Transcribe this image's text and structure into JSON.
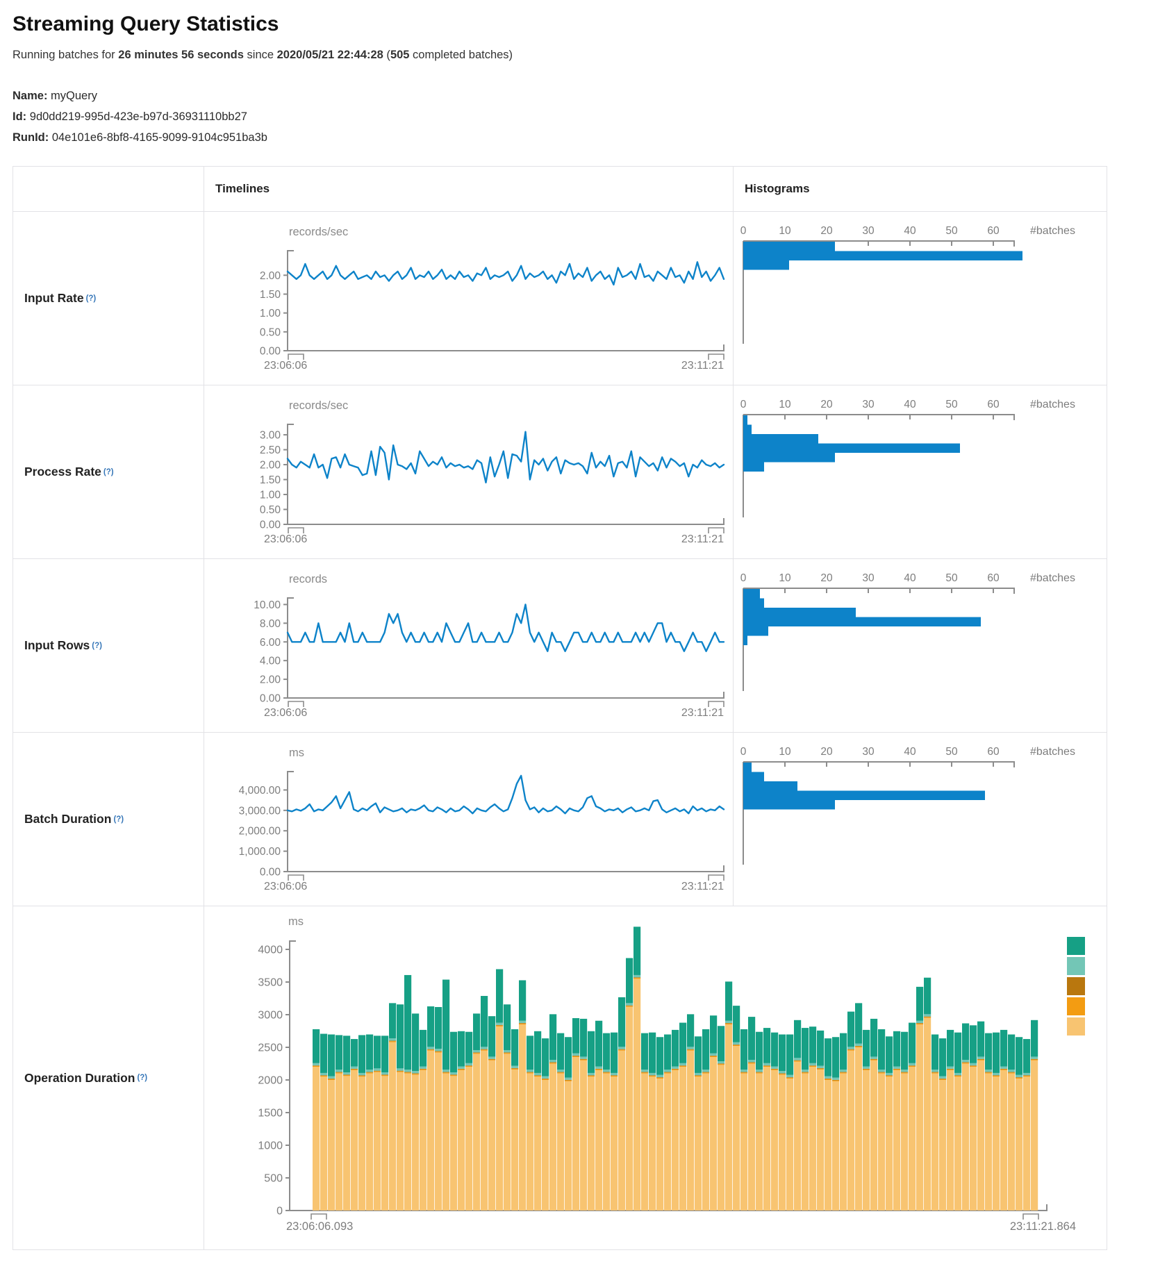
{
  "page": {
    "title": "Streaming Query Statistics",
    "sub_prefix": "Running batches for ",
    "sub_duration": "26 minutes 56 seconds",
    "sub_since": " since ",
    "sub_start": "2020/05/21 22:44:28",
    "sub_paren": " (",
    "sub_batches": "505",
    "sub_suffix": " completed batches)",
    "name_label": "Name:",
    "name_value": "myQuery",
    "id_label": "Id:",
    "id_value": "9d0dd219-995d-423e-b97d-36931110bb27",
    "runid_label": "RunId:",
    "runid_value": "04e101e6-8bf8-4165-9099-9104c951ba3b"
  },
  "table": {
    "col_timelines": "Timelines",
    "col_histograms": "Histograms",
    "help": "(?)",
    "rows": [
      {
        "label": "Input Rate"
      },
      {
        "label": "Process Rate"
      },
      {
        "label": "Input Rows"
      },
      {
        "label": "Batch Duration"
      },
      {
        "label": "Operation Duration"
      }
    ]
  },
  "colors": {
    "accent_blue": "#0d83c9",
    "axis_gray": "#8c8c8c",
    "tick_text": "#7d7d7d",
    "legend": [
      "#16A085",
      "#73C6B6",
      "#B9770E",
      "#F39C12",
      "#F8C471"
    ]
  },
  "chart_data": [
    {
      "id": "input-rate-timeline",
      "type": "line",
      "unit": "records/sec",
      "x_start": "23:06:06",
      "x_end": "23:11:21",
      "ymax": 2.65,
      "yticks": [
        {
          "label": "2.00",
          "value": 2.0
        },
        {
          "label": "1.50",
          "value": 1.5
        },
        {
          "label": "1.00",
          "value": 1.0
        },
        {
          "label": "0.50",
          "value": 0.5
        },
        {
          "label": "0.00",
          "value": 0.0
        }
      ],
      "values": [
        2.1,
        2.0,
        1.9,
        2.0,
        2.3,
        2.0,
        1.9,
        2.0,
        2.1,
        1.9,
        2.0,
        2.25,
        2.0,
        1.9,
        2.0,
        2.1,
        1.9,
        1.95,
        2.0,
        1.9,
        2.1,
        1.95,
        2.0,
        1.85,
        2.0,
        2.1,
        1.9,
        2.0,
        2.2,
        1.9,
        2.0,
        1.95,
        2.1,
        1.9,
        2.0,
        2.15,
        1.9,
        2.0,
        1.9,
        2.1,
        1.95,
        2.0,
        1.85,
        2.05,
        2.0,
        2.2,
        1.9,
        2.0,
        1.95,
        2.0,
        2.1,
        1.85,
        2.0,
        2.25,
        1.9,
        2.05,
        1.95,
        2.0,
        2.1,
        1.9,
        2.0,
        1.8,
        2.1,
        2.0,
        2.3,
        1.9,
        2.05,
        1.95,
        2.2,
        1.85,
        2.0,
        2.1,
        1.9,
        2.0,
        1.75,
        2.2,
        1.95,
        2.0,
        2.1,
        1.9,
        2.3,
        1.95,
        2.0,
        1.85,
        2.1,
        2.0,
        1.9,
        2.2,
        1.95,
        2.0,
        1.8,
        2.1,
        1.9,
        2.35,
        1.95,
        2.1,
        1.85,
        2.0,
        2.2,
        1.9
      ]
    },
    {
      "id": "input-rate-histogram",
      "type": "bar",
      "orientation": "horizontal",
      "xlabel": "#batches",
      "xticks": [
        0,
        10,
        20,
        30,
        40,
        50,
        60
      ],
      "values": [
        22,
        67,
        11
      ]
    },
    {
      "id": "process-rate-timeline",
      "type": "line",
      "unit": "records/sec",
      "x_start": "23:06:06",
      "x_end": "23:11:21",
      "ymax": 3.35,
      "yticks": [
        {
          "label": "3.00",
          "value": 3.0
        },
        {
          "label": "2.50",
          "value": 2.5
        },
        {
          "label": "2.00",
          "value": 2.0
        },
        {
          "label": "1.50",
          "value": 1.5
        },
        {
          "label": "1.00",
          "value": 1.0
        },
        {
          "label": "0.50",
          "value": 0.5
        },
        {
          "label": "0.00",
          "value": 0.0
        }
      ],
      "values": [
        2.2,
        2.0,
        1.9,
        2.1,
        2.0,
        1.9,
        2.35,
        1.9,
        2.0,
        1.55,
        2.2,
        2.25,
        1.9,
        2.35,
        2.0,
        1.95,
        1.9,
        1.65,
        1.7,
        2.45,
        1.65,
        2.6,
        2.4,
        1.5,
        2.65,
        2.0,
        1.95,
        1.85,
        2.05,
        1.7,
        2.45,
        2.2,
        1.95,
        2.1,
        2.0,
        2.25,
        1.9,
        2.05,
        1.95,
        2.0,
        1.9,
        1.95,
        1.85,
        2.15,
        2.05,
        1.4,
        2.25,
        1.6,
        2.0,
        2.45,
        1.55,
        2.35,
        2.3,
        2.1,
        3.1,
        1.5,
        2.15,
        2.0,
        2.2,
        1.8,
        2.1,
        2.25,
        1.7,
        2.15,
        2.05,
        2.0,
        2.05,
        1.95,
        1.7,
        2.4,
        1.9,
        2.1,
        1.95,
        2.3,
        1.6,
        2.05,
        2.1,
        1.9,
        2.45,
        1.6,
        2.25,
        2.1,
        1.95,
        2.05,
        1.8,
        2.25,
        1.9,
        2.2,
        2.1,
        1.95,
        2.05,
        1.6,
        2.0,
        1.9,
        2.15,
        2.0,
        1.95,
        2.05,
        1.9,
        2.0
      ]
    },
    {
      "id": "process-rate-histogram",
      "type": "bar",
      "orientation": "horizontal",
      "xlabel": "#batches",
      "xticks": [
        0,
        10,
        20,
        30,
        40,
        50,
        60
      ],
      "values": [
        1,
        2,
        18,
        52,
        22,
        5
      ]
    },
    {
      "id": "input-rows-timeline",
      "type": "line",
      "unit": "records",
      "x_start": "23:06:06",
      "x_end": "23:11:21",
      "ymax": 10.7,
      "yticks": [
        {
          "label": "10.00",
          "value": 10.0
        },
        {
          "label": "8.00",
          "value": 8.0
        },
        {
          "label": "6.00",
          "value": 6.0
        },
        {
          "label": "4.00",
          "value": 4.0
        },
        {
          "label": "2.00",
          "value": 2.0
        },
        {
          "label": "0.00",
          "value": 0.0
        }
      ],
      "values": [
        7,
        6,
        6,
        6,
        7,
        6,
        6,
        8,
        6,
        6,
        6,
        6,
        7,
        6,
        8,
        6,
        6,
        7,
        6,
        6,
        6,
        6,
        7,
        9,
        8,
        9,
        7,
        6,
        7,
        6,
        6,
        7,
        6,
        6,
        7,
        6,
        8,
        7,
        6,
        6,
        7,
        8,
        6,
        6,
        7,
        6,
        6,
        6,
        7,
        6,
        6,
        7,
        9,
        8,
        10,
        7,
        6,
        7,
        6,
        5,
        7,
        6,
        6,
        5,
        6,
        7,
        7,
        6,
        6,
        7,
        6,
        6,
        7,
        6,
        6,
        7,
        6,
        6,
        6,
        7,
        6,
        7,
        6,
        7,
        8,
        8,
        6,
        7,
        6,
        6,
        5,
        6,
        7,
        6,
        6,
        5,
        6,
        7,
        6,
        6
      ]
    },
    {
      "id": "input-rows-histogram",
      "type": "bar",
      "orientation": "horizontal",
      "xlabel": "#batches",
      "xticks": [
        0,
        10,
        20,
        30,
        40,
        50,
        60
      ],
      "values": [
        4,
        5,
        27,
        57,
        6,
        1
      ]
    },
    {
      "id": "batch-duration-timeline",
      "type": "line",
      "unit": "ms",
      "x_start": "23:06:06",
      "x_end": "23:11:21",
      "ymax": 4900,
      "yticks": [
        {
          "label": "4,000.00",
          "value": 4000
        },
        {
          "label": "3,000.00",
          "value": 3000
        },
        {
          "label": "2,000.00",
          "value": 2000
        },
        {
          "label": "1,000.00",
          "value": 1000
        },
        {
          "label": "0.00",
          "value": 0
        }
      ],
      "values": [
        3000,
        2950,
        3050,
        2980,
        3100,
        3300,
        2950,
        3050,
        3000,
        3200,
        3400,
        3700,
        3100,
        3500,
        3900,
        3050,
        2950,
        3100,
        3000,
        3200,
        3350,
        2900,
        3150,
        3050,
        2950,
        3000,
        3100,
        2900,
        3050,
        3000,
        3100,
        3250,
        3000,
        2950,
        3150,
        3050,
        2900,
        3100,
        2950,
        3000,
        3200,
        3050,
        2850,
        3100,
        3000,
        2950,
        3150,
        3300,
        3100,
        2950,
        3050,
        3600,
        4300,
        4700,
        3500,
        3050,
        3150,
        2900,
        3100,
        2950,
        3000,
        3200,
        3050,
        2850,
        3100,
        3000,
        2950,
        3150,
        3600,
        3700,
        3200,
        3100,
        2950,
        3050,
        3000,
        3100,
        2900,
        3050,
        3150,
        2950,
        3000,
        3100,
        3000,
        3450,
        3500,
        3050,
        2900,
        3000,
        3100,
        2950,
        3050,
        2850,
        3200,
        3000,
        3100,
        2950,
        3050,
        3000,
        3200,
        3050
      ]
    },
    {
      "id": "batch-duration-histogram",
      "type": "bar",
      "orientation": "horizontal",
      "xlabel": "#batches",
      "xticks": [
        0,
        10,
        20,
        30,
        40,
        50,
        60
      ],
      "values": [
        2,
        5,
        13,
        58,
        22
      ]
    },
    {
      "id": "operation-duration",
      "type": "stacked-bar",
      "unit": "ms",
      "x_start": "23:06:06.093",
      "x_end": "23:11:21.864",
      "ymax": 4000,
      "yticks": [
        {
          "label": "4000",
          "value": 4000
        },
        {
          "label": "3500",
          "value": 3500
        },
        {
          "label": "3000",
          "value": 3000
        },
        {
          "label": "2500",
          "value": 2500
        },
        {
          "label": "2000",
          "value": 2000
        },
        {
          "label": "1500",
          "value": 1500
        },
        {
          "label": "1000",
          "value": 1000
        },
        {
          "label": "500",
          "value": 500
        },
        {
          "label": "0",
          "value": 0
        }
      ],
      "legend_colors": [
        "#16A085",
        "#73C6B6",
        "#B9770E",
        "#F39C12",
        "#F8C471"
      ],
      "series": [
        {
          "name": "series-5",
          "color": "#F8C471",
          "values": [
            2200,
            2050,
            2000,
            2100,
            2060,
            2150,
            2050,
            2100,
            2120,
            2060,
            2580,
            2120,
            2100,
            2080,
            2150,
            2450,
            2420,
            2100,
            2060,
            2150,
            2200,
            2400,
            2450,
            2300,
            2820,
            2400,
            2160,
            2850,
            2100,
            2050,
            2000,
            2250,
            2100,
            1980,
            2350,
            2300,
            2050,
            2150,
            2100,
            2050,
            2450,
            3120,
            3550,
            2100,
            2050,
            2020,
            2100,
            2150,
            2200,
            2450,
            2050,
            2100,
            2350,
            2230,
            2850,
            2520,
            2100,
            2250,
            2100,
            2200,
            2150,
            2080,
            2020,
            2280,
            2100,
            2200,
            2160,
            2000,
            1980,
            2100,
            2450,
            2500,
            2150,
            2300,
            2100,
            2050,
            2150,
            2100,
            2200,
            2850,
            2950,
            2100,
            2000,
            2150,
            2050,
            2250,
            2200,
            2300,
            2100,
            2050,
            2150,
            2100,
            2020,
            2050,
            2300
          ]
        },
        {
          "name": "series-4",
          "color": "#F39C12",
          "const": 14
        },
        {
          "name": "series-3",
          "color": "#B9770E",
          "const": 8
        },
        {
          "name": "series-2",
          "color": "#73C6B6",
          "const": 35
        },
        {
          "name": "series-1",
          "color": "#16A085",
          "values": [
            520,
            600,
            640,
            530,
            560,
            420,
            580,
            540,
            500,
            560,
            540,
            980,
            1450,
            880,
            560,
            620,
            640,
            1380,
            620,
            540,
            480,
            560,
            780,
            620,
            820,
            700,
            560,
            620,
            520,
            640,
            580,
            700,
            560,
            620,
            540,
            580,
            640,
            700,
            560,
            620,
            760,
            690,
            740,
            560,
            620,
            580,
            540,
            560,
            620,
            500,
            560,
            620,
            580,
            540,
            600,
            560,
            620,
            660,
            580,
            540,
            520,
            560,
            620,
            580,
            640,
            560,
            540,
            580,
            620,
            560,
            540,
            620,
            560,
            580,
            620,
            560,
            540,
            580,
            620,
            520,
            560,
            540,
            580,
            560,
            620,
            560,
            580,
            540,
            560,
            620,
            560,
            540,
            580,
            520,
            560
          ]
        }
      ]
    }
  ]
}
